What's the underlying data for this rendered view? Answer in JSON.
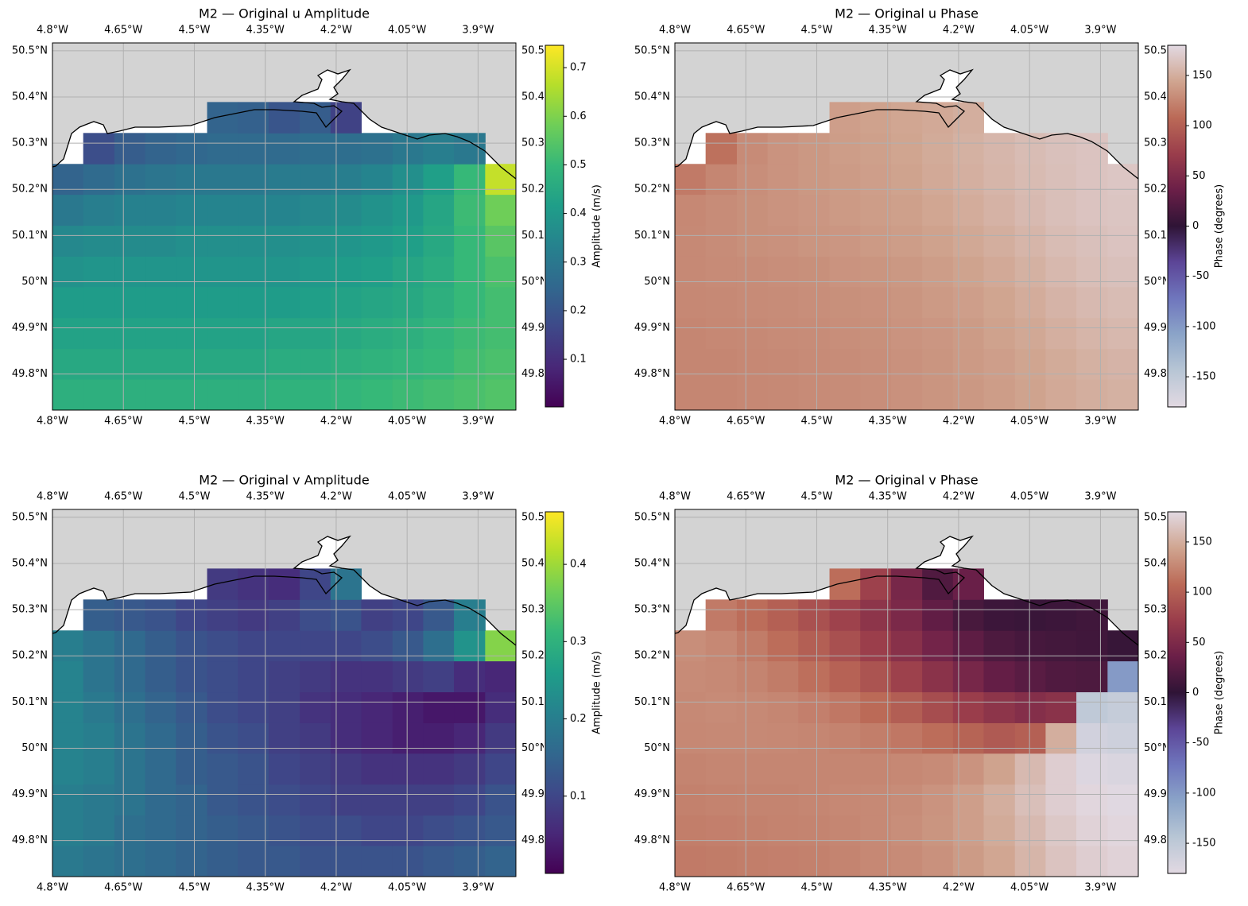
{
  "chart_data": [
    {
      "type": "heatmap",
      "title": "M2 — Original u Amplitude",
      "cmap": "viridis",
      "colorbar_label": "Amplitude (m/s)",
      "clim": [
        0.002,
        0.746
      ],
      "cticks": [
        0.1,
        0.2,
        0.3,
        0.4,
        0.5,
        0.6,
        0.7
      ],
      "xlim": [
        -4.8,
        -3.82
      ],
      "ylim": [
        49.722,
        50.517
      ],
      "grid": true,
      "xticks": [
        {
          "value": -4.8,
          "label": "4.8°W"
        },
        {
          "value": -4.65,
          "label": "4.65°W"
        },
        {
          "value": -4.5,
          "label": "4.5°W"
        },
        {
          "value": -4.35,
          "label": "4.35°W"
        },
        {
          "value": -4.2,
          "label": "4.2°W"
        },
        {
          "value": -4.05,
          "label": "4.05°W"
        },
        {
          "value": -3.9,
          "label": "3.9°W"
        }
      ],
      "yticks": [
        {
          "value": 49.8,
          "label": "49.8°N"
        },
        {
          "value": 49.9,
          "label": "49.9°N"
        },
        {
          "value": 50,
          "label": "50°N"
        },
        {
          "value": 50.1,
          "label": "50.1°N"
        },
        {
          "value": 50.2,
          "label": "50.2°N"
        },
        {
          "value": 50.3,
          "label": "50.3°N"
        },
        {
          "value": 50.4,
          "label": "50.4°N"
        },
        {
          "value": 50.5,
          "label": "50.5°N"
        }
      ],
      "xbins": [
        -4.8,
        -4.735,
        -4.669,
        -4.604,
        -4.539,
        -4.473,
        -4.408,
        -4.343,
        -4.277,
        -4.212,
        -4.147,
        -4.081,
        -4.016,
        -3.951,
        -3.885,
        -3.82
      ],
      "ybins": [
        49.722,
        49.789,
        49.855,
        49.922,
        49.989,
        50.055,
        50.122,
        50.189,
        50.255,
        50.322,
        50.389
      ],
      "values": [
        [
          0.47,
          0.47,
          0.47,
          0.47,
          0.47,
          0.47,
          0.47,
          0.48,
          0.48,
          0.49,
          0.5,
          0.51,
          0.52,
          0.53,
          0.54
        ],
        [
          0.45,
          0.45,
          0.45,
          0.45,
          0.45,
          0.45,
          0.45,
          0.46,
          0.46,
          0.47,
          0.48,
          0.49,
          0.5,
          0.52,
          0.53
        ],
        [
          0.43,
          0.43,
          0.43,
          0.43,
          0.43,
          0.43,
          0.43,
          0.44,
          0.44,
          0.45,
          0.46,
          0.47,
          0.49,
          0.51,
          0.52
        ],
        [
          0.41,
          0.41,
          0.41,
          0.41,
          0.41,
          0.41,
          0.41,
          0.41,
          0.42,
          0.43,
          0.44,
          0.45,
          0.47,
          0.5,
          0.52
        ],
        [
          0.38,
          0.39,
          0.39,
          0.39,
          0.39,
          0.39,
          0.39,
          0.39,
          0.4,
          0.41,
          0.42,
          0.44,
          0.46,
          0.5,
          0.53
        ],
        [
          0.35,
          0.36,
          0.36,
          0.36,
          0.37,
          0.37,
          0.37,
          0.37,
          0.38,
          0.39,
          0.4,
          0.42,
          0.45,
          0.5,
          0.55
        ],
        [
          0.3,
          0.32,
          0.33,
          0.33,
          0.34,
          0.34,
          0.34,
          0.34,
          0.35,
          0.36,
          0.38,
          0.4,
          0.44,
          0.51,
          0.58
        ],
        [
          0.24,
          0.26,
          0.28,
          0.29,
          0.3,
          0.3,
          0.3,
          0.31,
          0.31,
          0.32,
          0.34,
          0.37,
          0.42,
          0.5,
          0.68
        ],
        [
          null,
          0.18,
          0.22,
          0.24,
          0.25,
          0.26,
          0.26,
          0.26,
          0.27,
          0.27,
          0.28,
          0.3,
          0.32,
          0.3,
          null
        ],
        [
          null,
          null,
          null,
          null,
          null,
          0.24,
          0.23,
          0.2,
          0.22,
          0.15,
          null,
          null,
          null,
          null,
          null
        ]
      ]
    },
    {
      "type": "heatmap",
      "title": "M2 — Original u Phase",
      "cmap": "twilight",
      "colorbar_label": "Phase (degrees)",
      "clim": [
        -180,
        180
      ],
      "cticks": [
        -150,
        -100,
        -50,
        0,
        50,
        100,
        150
      ],
      "xlim": [
        -4.8,
        -3.82
      ],
      "ylim": [
        49.722,
        50.517
      ],
      "grid": true,
      "xticks": [
        {
          "value": -4.8,
          "label": "4.8°W"
        },
        {
          "value": -4.65,
          "label": "4.65°W"
        },
        {
          "value": -4.5,
          "label": "4.5°W"
        },
        {
          "value": -4.35,
          "label": "4.35°W"
        },
        {
          "value": -4.2,
          "label": "4.2°W"
        },
        {
          "value": -4.05,
          "label": "4.05°W"
        },
        {
          "value": -3.9,
          "label": "3.9°W"
        }
      ],
      "yticks": [
        {
          "value": 49.8,
          "label": "49.8°N"
        },
        {
          "value": 49.9,
          "label": "49.9°N"
        },
        {
          "value": 50,
          "label": "50°N"
        },
        {
          "value": 50.1,
          "label": "50.1°N"
        },
        {
          "value": 50.2,
          "label": "50.2°N"
        },
        {
          "value": 50.3,
          "label": "50.3°N"
        },
        {
          "value": 50.4,
          "label": "50.4°N"
        },
        {
          "value": 50.5,
          "label": "50.5°N"
        }
      ],
      "xbins": [
        -4.8,
        -4.735,
        -4.669,
        -4.604,
        -4.539,
        -4.473,
        -4.408,
        -4.343,
        -4.277,
        -4.212,
        -4.147,
        -4.081,
        -4.016,
        -3.951,
        -3.885,
        -3.82
      ],
      "ybins": [
        49.722,
        49.789,
        49.855,
        49.922,
        49.989,
        50.055,
        50.122,
        50.189,
        50.255,
        50.322,
        50.389
      ],
      "values": [
        [
          125,
          125,
          126,
          127,
          128,
          129,
          130,
          132,
          134,
          136,
          139,
          143,
          147,
          150,
          152
        ],
        [
          125,
          125,
          126,
          127,
          128,
          129,
          130,
          132,
          134,
          137,
          140,
          144,
          148,
          152,
          154
        ],
        [
          125,
          126,
          127,
          128,
          129,
          130,
          131,
          133,
          135,
          138,
          142,
          146,
          151,
          155,
          157
        ],
        [
          126,
          127,
          128,
          129,
          130,
          131,
          132,
          134,
          137,
          140,
          144,
          149,
          154,
          158,
          160
        ],
        [
          127,
          128,
          129,
          130,
          131,
          133,
          134,
          136,
          139,
          143,
          147,
          152,
          157,
          161,
          163
        ],
        [
          127,
          129,
          131,
          132,
          134,
          135,
          137,
          139,
          142,
          146,
          150,
          155,
          160,
          163,
          165
        ],
        [
          126,
          129,
          131,
          133,
          135,
          137,
          139,
          141,
          145,
          149,
          153,
          158,
          162,
          165,
          166
        ],
        [
          118,
          125,
          130,
          133,
          136,
          138,
          140,
          143,
          147,
          151,
          155,
          159,
          162,
          165,
          167
        ],
        [
          null,
          112,
          128,
          133,
          136,
          139,
          141,
          144,
          148,
          152,
          156,
          160,
          163,
          165,
          null
        ],
        [
          null,
          null,
          null,
          null,
          null,
          140,
          142,
          145,
          147,
          150,
          null,
          null,
          null,
          null,
          null
        ]
      ]
    },
    {
      "type": "heatmap",
      "title": "M2 — Original v Amplitude",
      "cmap": "viridis",
      "colorbar_label": "Amplitude (m/s)",
      "clim": [
        0,
        0.468
      ],
      "cticks": [
        0.1,
        0.2,
        0.3,
        0.4
      ],
      "xlim": [
        -4.8,
        -3.82
      ],
      "ylim": [
        49.722,
        50.517
      ],
      "grid": true,
      "xticks": [
        {
          "value": -4.8,
          "label": "4.8°W"
        },
        {
          "value": -4.65,
          "label": "4.65°W"
        },
        {
          "value": -4.5,
          "label": "4.5°W"
        },
        {
          "value": -4.35,
          "label": "4.35°W"
        },
        {
          "value": -4.2,
          "label": "4.2°W"
        },
        {
          "value": -4.05,
          "label": "4.05°W"
        },
        {
          "value": -3.9,
          "label": "3.9°W"
        }
      ],
      "yticks": [
        {
          "value": 49.8,
          "label": "49.8°N"
        },
        {
          "value": 49.9,
          "label": "49.9°N"
        },
        {
          "value": 50,
          "label": "50°N"
        },
        {
          "value": 50.1,
          "label": "50.1°N"
        },
        {
          "value": 50.2,
          "label": "50.2°N"
        },
        {
          "value": 50.3,
          "label": "50.3°N"
        },
        {
          "value": 50.4,
          "label": "50.4°N"
        },
        {
          "value": 50.5,
          "label": "50.5°N"
        }
      ],
      "xbins": [
        -4.8,
        -4.735,
        -4.669,
        -4.604,
        -4.539,
        -4.473,
        -4.408,
        -4.343,
        -4.277,
        -4.212,
        -4.147,
        -4.081,
        -4.016,
        -3.951,
        -3.885,
        -3.82
      ],
      "ybins": [
        49.722,
        49.789,
        49.855,
        49.922,
        49.989,
        50.055,
        50.122,
        50.189,
        50.255,
        50.322,
        50.389
      ],
      "values": [
        [
          0.19,
          0.18,
          0.17,
          0.16,
          0.15,
          0.14,
          0.13,
          0.13,
          0.12,
          0.12,
          0.12,
          0.12,
          0.13,
          0.14,
          0.15
        ],
        [
          0.2,
          0.19,
          0.17,
          0.16,
          0.15,
          0.14,
          0.13,
          0.12,
          0.11,
          0.11,
          0.1,
          0.1,
          0.11,
          0.12,
          0.13
        ],
        [
          0.2,
          0.19,
          0.18,
          0.16,
          0.15,
          0.13,
          0.12,
          0.11,
          0.1,
          0.09,
          0.09,
          0.09,
          0.09,
          0.1,
          0.12
        ],
        [
          0.21,
          0.2,
          0.18,
          0.16,
          0.14,
          0.13,
          0.12,
          0.1,
          0.09,
          0.08,
          0.07,
          0.07,
          0.07,
          0.08,
          0.1
        ],
        [
          0.21,
          0.2,
          0.18,
          0.16,
          0.14,
          0.12,
          0.11,
          0.09,
          0.08,
          0.06,
          0.05,
          0.04,
          0.04,
          0.05,
          0.08
        ],
        [
          0.21,
          0.19,
          0.17,
          0.15,
          0.13,
          0.11,
          0.1,
          0.09,
          0.07,
          0.06,
          0.05,
          0.04,
          0.03,
          0.03,
          0.06
        ],
        [
          0.21,
          0.18,
          0.16,
          0.14,
          0.12,
          0.11,
          0.1,
          0.09,
          0.08,
          0.07,
          0.07,
          0.08,
          0.09,
          0.06,
          0.05
        ],
        [
          0.2,
          0.18,
          0.16,
          0.14,
          0.12,
          0.11,
          0.1,
          0.1,
          0.1,
          0.1,
          0.11,
          0.13,
          0.17,
          0.24,
          0.38
        ],
        [
          null,
          0.14,
          0.13,
          0.12,
          0.1,
          0.09,
          0.08,
          0.09,
          0.11,
          0.12,
          0.09,
          0.1,
          0.13,
          0.2,
          null
        ],
        [
          null,
          null,
          null,
          null,
          null,
          0.08,
          0.07,
          0.06,
          0.1,
          0.18,
          null,
          null,
          null,
          null,
          null
        ]
      ]
    },
    {
      "type": "heatmap",
      "title": "M2 — Original v Phase",
      "cmap": "twilight",
      "colorbar_label": "Phase (degrees)",
      "clim": [
        -180,
        180
      ],
      "cticks": [
        -150,
        -100,
        -50,
        0,
        50,
        100,
        150
      ],
      "xlim": [
        -4.8,
        -3.82
      ],
      "ylim": [
        49.722,
        50.517
      ],
      "grid": true,
      "xticks": [
        {
          "value": -4.8,
          "label": "4.8°W"
        },
        {
          "value": -4.65,
          "label": "4.65°W"
        },
        {
          "value": -4.5,
          "label": "4.5°W"
        },
        {
          "value": -4.35,
          "label": "4.35°W"
        },
        {
          "value": -4.2,
          "label": "4.2°W"
        },
        {
          "value": -4.05,
          "label": "4.05°W"
        },
        {
          "value": -3.9,
          "label": "3.9°W"
        }
      ],
      "yticks": [
        {
          "value": 49.8,
          "label": "49.8°N"
        },
        {
          "value": 49.9,
          "label": "49.9°N"
        },
        {
          "value": 50,
          "label": "50°N"
        },
        {
          "value": 50.1,
          "label": "50.1°N"
        },
        {
          "value": 50.2,
          "label": "50.2°N"
        },
        {
          "value": 50.3,
          "label": "50.3°N"
        },
        {
          "value": 50.4,
          "label": "50.4°N"
        },
        {
          "value": 50.5,
          "label": "50.5°N"
        }
      ],
      "xbins": [
        -4.8,
        -4.735,
        -4.669,
        -4.604,
        -4.539,
        -4.473,
        -4.408,
        -4.343,
        -4.277,
        -4.212,
        -4.147,
        -4.081,
        -4.016,
        -3.951,
        -3.885,
        -3.82
      ],
      "ybins": [
        49.722,
        49.789,
        49.855,
        49.922,
        49.989,
        50.055,
        50.122,
        50.189,
        50.255,
        50.322,
        50.389
      ],
      "values": [
        [
          118,
          119,
          120,
          121,
          122,
          124,
          126,
          128,
          132,
          138,
          145,
          155,
          165,
          172,
          175
        ],
        [
          120,
          121,
          122,
          123,
          124,
          125,
          127,
          130,
          134,
          140,
          148,
          158,
          168,
          175,
          178
        ],
        [
          122,
          123,
          124,
          124,
          125,
          126,
          127,
          129,
          133,
          140,
          150,
          162,
          172,
          178,
          -178
        ],
        [
          124,
          125,
          125,
          125,
          125,
          125,
          125,
          126,
          128,
          133,
          143,
          158,
          172,
          -175,
          -172
        ],
        [
          126,
          127,
          127,
          126,
          125,
          123,
          120,
          116,
          110,
          103,
          95,
          100,
          150,
          -165,
          -162
        ],
        [
          127,
          128,
          127,
          125,
          121,
          116,
          108,
          98,
          85,
          72,
          62,
          55,
          60,
          -150,
          -155
        ],
        [
          128,
          127,
          124,
          119,
          111,
          102,
          90,
          75,
          60,
          45,
          32,
          25,
          20,
          18,
          -100
        ],
        [
          130,
          126,
          119,
          110,
          99,
          87,
          73,
          58,
          42,
          28,
          18,
          14,
          12,
          10,
          5
        ],
        [
          null,
          118,
          110,
          100,
          88,
          76,
          62,
          48,
          30,
          15,
          8,
          6,
          8,
          10,
          null
        ],
        [
          null,
          null,
          null,
          null,
          null,
          110,
          75,
          45,
          20,
          35,
          null,
          null,
          null,
          null,
          null
        ]
      ]
    }
  ]
}
